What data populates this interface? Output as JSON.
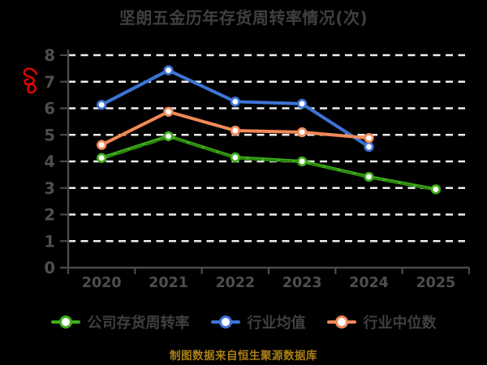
{
  "page": {
    "background": "#000000"
  },
  "chart_data": {
    "type": "line",
    "title": "坚朗五金历年存货周转率情况(次)",
    "xlabel": "",
    "ylabel": "",
    "categories": [
      "2020",
      "2021",
      "2022",
      "2023",
      "2024",
      "2025"
    ],
    "series": [
      {
        "name": "公司存货周转率",
        "color": "#3fae1d",
        "sketch_color": "#2c860e",
        "sketchy": true,
        "values": [
          4.13,
          4.95,
          4.15,
          4.0,
          3.42,
          2.95
        ]
      },
      {
        "name": "行业均值",
        "color": "#3d74d6",
        "sketchy": false,
        "values": [
          6.13,
          7.43,
          6.25,
          6.17,
          4.55,
          null
        ]
      },
      {
        "name": "行业中位数",
        "color": "#f18a58",
        "sketchy": false,
        "values": [
          4.62,
          5.87,
          5.16,
          5.1,
          4.88,
          null
        ]
      }
    ],
    "ylim": [
      0,
      8
    ],
    "yticks": [
      0,
      1,
      2,
      3,
      4,
      5,
      6,
      7,
      8
    ],
    "grid": {
      "show": true,
      "color": "#eeeeee",
      "style": "dashed"
    },
    "marker": "hollow-circle",
    "legend_position": "bottom",
    "colors": {
      "title_text": "#3f3f3f",
      "axis_line": "#4a4a4a",
      "tick_text": "#4e4e4e",
      "legend_text": "#3f3f3f"
    }
  },
  "annotations": {
    "red_scribble": {
      "color": "#dd0404"
    }
  },
  "source_note": {
    "text": "制图数据来自恒生聚源数据库",
    "color": "#aa7f15"
  }
}
